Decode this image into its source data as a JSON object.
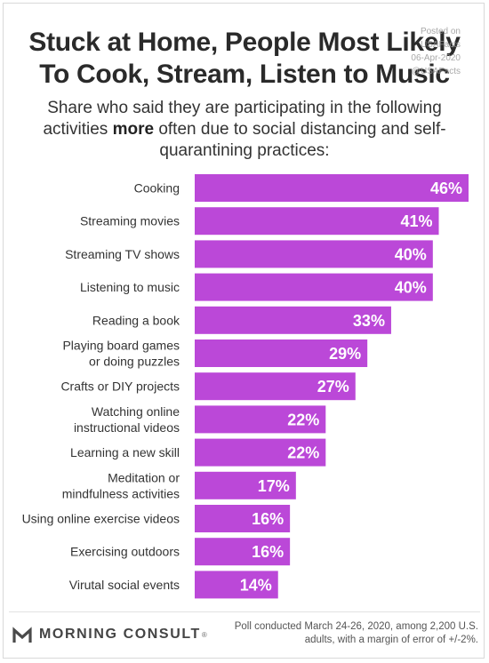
{
  "title": {
    "line1": "Stuck at Home, People Most Likely",
    "line2": "To Cook, Stream, Listen to Music"
  },
  "watermark": {
    "line1": "Posted on",
    "line2": "USAFacts",
    "line3": "06-Apr-2020",
    "line4": "@USAFacts"
  },
  "subtitle": {
    "part1": "Share who said they are participating in the following activities ",
    "emphasis": "more",
    "part2": " often due to social distancing and self-quarantining practices:"
  },
  "chart_data": {
    "type": "bar",
    "orientation": "horizontal",
    "value_suffix": "%",
    "bar_color": "#bb48d8",
    "categories": [
      [
        "Cooking"
      ],
      [
        "Streaming movies"
      ],
      [
        "Streaming TV shows"
      ],
      [
        "Listening to music"
      ],
      [
        "Reading a book"
      ],
      [
        "Playing board games",
        "or doing puzzles"
      ],
      [
        "Crafts or DIY projects"
      ],
      [
        "Watching online",
        "instructional videos"
      ],
      [
        "Learning a new skill"
      ],
      [
        "Meditation or",
        "mindfulness activities"
      ],
      [
        "Using online exercise videos"
      ],
      [
        "Exercising outdoors"
      ],
      [
        "Virutal social events"
      ]
    ],
    "values": [
      46,
      41,
      40,
      40,
      33,
      29,
      27,
      22,
      22,
      17,
      16,
      16,
      14
    ],
    "xlim": [
      0,
      46
    ],
    "grid": false,
    "legend": "none"
  },
  "footer": {
    "brand": "MORNING CONSULT",
    "brand_mark": "®",
    "note": "Poll conducted March 24-26, 2020, among 2,200 U.S. adults, with a margin of error of +/-2%."
  }
}
